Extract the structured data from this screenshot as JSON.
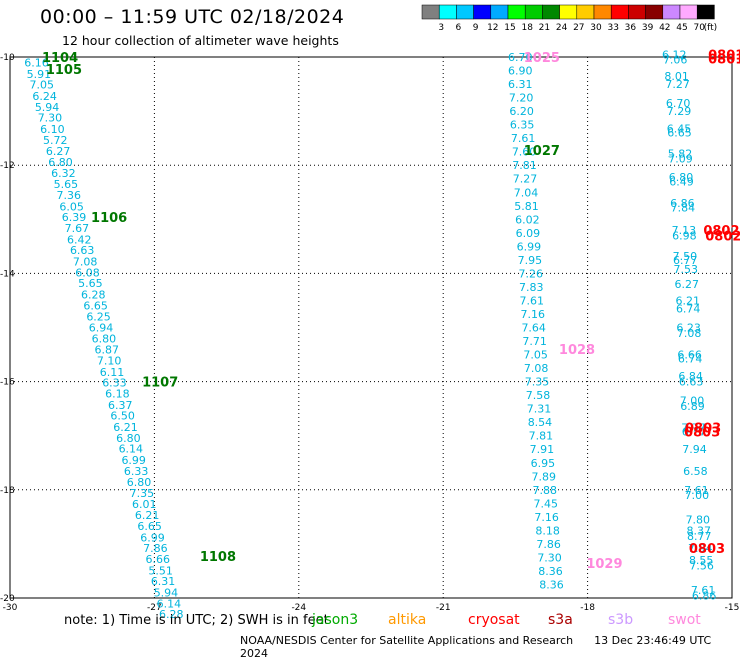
{
  "title": "00:00 – 11:59 UTC 02/18/2024",
  "subtitle": "12 hour collection of altimeter wave heights",
  "note": "note:  1) Time is in UTC; 2) SWH is in feet",
  "credit": "NOAA/NESDIS Center for Satellite Applications and Research",
  "generated": "13 Dec 23:46:49 UTC 2024",
  "missions": [
    {
      "name": "jason3",
      "color": "#00aa00"
    },
    {
      "name": "altika",
      "color": "#ff9900"
    },
    {
      "name": "cryosat",
      "color": "#ff0000"
    },
    {
      "name": "s3a",
      "color": "#aa0000"
    },
    {
      "name": "s3b",
      "color": "#cc99ff"
    },
    {
      "name": "swot",
      "color": "#ff88dd"
    }
  ],
  "colorbar": {
    "unit": "(ft)",
    "bins": [
      {
        "label": "",
        "color": "#808080"
      },
      {
        "label": "3",
        "color": "#00ffff"
      },
      {
        "label": "6",
        "color": "#00c8ff"
      },
      {
        "label": "9",
        "color": "#0000ff"
      },
      {
        "label": "12",
        "color": "#00aaff"
      },
      {
        "label": "15",
        "color": "#00ff00"
      },
      {
        "label": "18",
        "color": "#00cc00"
      },
      {
        "label": "21",
        "color": "#008800"
      },
      {
        "label": "24",
        "color": "#ffff00"
      },
      {
        "label": "27",
        "color": "#ffcc00"
      },
      {
        "label": "30",
        "color": "#ff8800"
      },
      {
        "label": "33",
        "color": "#ff0000"
      },
      {
        "label": "36",
        "color": "#cc0000"
      },
      {
        "label": "39",
        "color": "#880000"
      },
      {
        "label": "42",
        "color": "#cc88ff"
      },
      {
        "label": "45",
        "color": "#ffaaff"
      },
      {
        "label": "70",
        "color": "#000000"
      }
    ]
  },
  "axes": {
    "lon_ticks": [
      -30,
      -27,
      -24,
      -21,
      -18,
      -15
    ],
    "lon_labels": [
      "-30",
      "-27",
      "-24",
      "-21",
      "-18",
      "-15"
    ],
    "lat_ticks": [
      -10,
      -12,
      -14,
      -16,
      -18,
      -20
    ],
    "lat_labels": [
      "-10",
      "-12",
      "-14",
      "-16",
      "-18",
      "-20"
    ],
    "lon_range": [
      -30,
      -15
    ],
    "lat_range": [
      -20,
      -10
    ]
  },
  "style": {
    "value_color": "#00b4dc",
    "time_color": "#007700",
    "s3a_time_color": "#ff0000",
    "swot_time_color": "#ff88dd"
  },
  "tracks": [
    {
      "mission": "jason3",
      "points": [
        [
          -29.45,
          -10.1,
          "6.16"
        ],
        [
          -29.4,
          -10.31,
          "5.91"
        ],
        [
          -29.34,
          -10.51,
          "7.05"
        ],
        [
          -29.28,
          -10.72,
          "6.24"
        ],
        [
          -29.23,
          -10.92,
          "5.94"
        ],
        [
          -29.17,
          -11.12,
          "7.30"
        ],
        [
          -29.12,
          -11.33,
          "6.10"
        ],
        [
          -29.06,
          -11.53,
          "5.72"
        ],
        [
          -29.0,
          -11.74,
          "6.27"
        ],
        [
          -28.95,
          -11.94,
          "6.80"
        ],
        [
          -28.89,
          -12.14,
          "6.32"
        ],
        [
          -28.84,
          -12.35,
          "5.65"
        ],
        [
          -28.78,
          -12.55,
          "7.36"
        ],
        [
          -28.72,
          -12.76,
          "6.05"
        ],
        [
          -28.67,
          -12.96,
          "6.39"
        ],
        [
          -28.61,
          -13.16,
          "7.67"
        ],
        [
          -28.56,
          -13.37,
          "6.42"
        ],
        [
          -28.5,
          -13.57,
          "6.63"
        ],
        [
          -28.44,
          -13.78,
          "7.08"
        ],
        [
          -28.39,
          -13.98,
          "6.08"
        ],
        [
          -28.33,
          -14.18,
          "5.65"
        ],
        [
          -28.27,
          -14.39,
          "6.28"
        ],
        [
          -28.22,
          -14.59,
          "6.65"
        ],
        [
          -28.16,
          -14.8,
          "6.25"
        ],
        [
          -28.11,
          -15.0,
          "6.94"
        ],
        [
          -28.05,
          -15.2,
          "6.80"
        ],
        [
          -27.99,
          -15.41,
          "6.87"
        ],
        [
          -27.94,
          -15.61,
          "7.10"
        ],
        [
          -27.88,
          -15.82,
          "6.11"
        ],
        [
          -27.83,
          -16.02,
          "6.33"
        ],
        [
          -27.77,
          -16.22,
          "6.18"
        ],
        [
          -27.71,
          -16.43,
          "6.37"
        ],
        [
          -27.66,
          -16.63,
          "6.50"
        ],
        [
          -27.6,
          -16.84,
          "6.21"
        ],
        [
          -27.54,
          -17.04,
          "6.80"
        ],
        [
          -27.49,
          -17.24,
          "6.14"
        ],
        [
          -27.43,
          -17.45,
          "6.99"
        ],
        [
          -27.38,
          -17.65,
          "6.33"
        ],
        [
          -27.32,
          -17.86,
          "6.80"
        ],
        [
          -27.26,
          -18.06,
          "7.35"
        ],
        [
          -27.21,
          -18.26,
          "6.01"
        ],
        [
          -27.15,
          -18.47,
          "6.21"
        ],
        [
          -27.1,
          -18.67,
          "6.65"
        ],
        [
          -27.04,
          -18.88,
          "6.99"
        ],
        [
          -26.98,
          -19.08,
          "7.86"
        ],
        [
          -26.93,
          -19.28,
          "6.66"
        ],
        [
          -26.87,
          -19.49,
          "5.51"
        ],
        [
          -26.82,
          -19.69,
          "6.31"
        ],
        [
          -26.76,
          -19.9,
          "5.94"
        ],
        [
          -26.7,
          -20.1,
          "6.14"
        ],
        [
          -26.65,
          -20.3,
          "6.28"
        ]
      ],
      "times": [
        [
          -28.96,
          -10.0,
          "1104"
        ],
        [
          -28.88,
          -10.22,
          "1105"
        ],
        [
          -27.94,
          -12.96,
          "1106"
        ],
        [
          -26.88,
          -16.0,
          "1107"
        ],
        [
          -25.68,
          -19.22,
          "1108"
        ]
      ]
    },
    {
      "mission": "s3a",
      "points": [
        [
          -19.4,
          -10.0,
          "6.70"
        ],
        [
          -19.4,
          -10.25,
          "6.90"
        ],
        [
          -19.4,
          -10.5,
          "6.31"
        ],
        [
          -19.38,
          -10.75,
          "7.20"
        ],
        [
          -19.37,
          -11.0,
          "6.20"
        ],
        [
          -19.36,
          -11.25,
          "6.35"
        ],
        [
          -19.34,
          -11.5,
          "7.61"
        ],
        [
          -19.32,
          -11.75,
          "7.60"
        ],
        [
          -19.31,
          -12.0,
          "7.81"
        ],
        [
          -19.3,
          -12.25,
          "7.27"
        ],
        [
          -19.28,
          -12.5,
          "7.04"
        ],
        [
          -19.27,
          -12.75,
          "5.81"
        ],
        [
          -19.25,
          -13.0,
          "6.02"
        ],
        [
          -19.24,
          -13.25,
          "6.09"
        ],
        [
          -19.22,
          -13.5,
          "6.99"
        ],
        [
          -19.2,
          -13.75,
          "7.95"
        ],
        [
          -19.18,
          -14.0,
          "7.26"
        ],
        [
          -19.17,
          -14.25,
          "7.83"
        ],
        [
          -19.16,
          -14.5,
          "7.61"
        ],
        [
          -19.14,
          -14.75,
          "7.16"
        ],
        [
          -19.12,
          -15.0,
          "7.64"
        ],
        [
          -19.1,
          -15.25,
          "7.71"
        ],
        [
          -19.08,
          -15.5,
          "7.05"
        ],
        [
          -19.07,
          -15.75,
          "7.08"
        ],
        [
          -19.05,
          -16.0,
          "7.35"
        ],
        [
          -19.03,
          -16.25,
          "7.58"
        ],
        [
          -19.01,
          -16.5,
          "7.31"
        ],
        [
          -18.99,
          -16.75,
          "8.54"
        ],
        [
          -18.97,
          -17.0,
          "7.81"
        ],
        [
          -18.95,
          -17.25,
          "7.91"
        ],
        [
          -18.93,
          -17.5,
          "6.95"
        ],
        [
          -18.91,
          -17.75,
          "7.89"
        ],
        [
          -18.89,
          -18.0,
          "7.88"
        ],
        [
          -18.87,
          -18.25,
          "7.45"
        ],
        [
          -18.85,
          -18.5,
          "7.16"
        ],
        [
          -18.83,
          -18.75,
          "8.18"
        ],
        [
          -18.81,
          -19.0,
          "7.86"
        ],
        [
          -18.79,
          -19.25,
          "7.30"
        ],
        [
          -18.77,
          -19.5,
          "8.36"
        ],
        [
          -18.75,
          -19.75,
          "8.36"
        ]
      ],
      "times": [
        [
          -18.95,
          -11.72,
          "1027"
        ]
      ]
    },
    {
      "mission": "swot",
      "points": [],
      "times": [
        [
          -18.95,
          -10.0,
          "1025"
        ],
        [
          -18.22,
          -15.4,
          "1028"
        ],
        [
          -17.65,
          -19.35,
          "1029"
        ]
      ]
    },
    {
      "mission": "cryosat",
      "points": [
        [
          -16.2,
          -9.95,
          "6.12"
        ],
        [
          -16.18,
          -10.05,
          "7.06"
        ],
        [
          -16.15,
          -10.35,
          "8.01"
        ],
        [
          -16.13,
          -10.5,
          "7.27"
        ],
        [
          -16.12,
          -10.85,
          "6.70"
        ],
        [
          -16.1,
          -11.0,
          "7.29"
        ],
        [
          -16.1,
          -11.32,
          "6.45"
        ],
        [
          -16.09,
          -11.4,
          "6.65"
        ],
        [
          -16.08,
          -11.78,
          "5.82"
        ],
        [
          -16.07,
          -11.88,
          "7.09"
        ],
        [
          -16.06,
          -12.22,
          "6.80"
        ],
        [
          -16.05,
          -12.3,
          "6.49"
        ],
        [
          -16.03,
          -12.7,
          "6.86"
        ],
        [
          -16.02,
          -12.78,
          "7.84"
        ],
        [
          -16.0,
          -13.2,
          "7.13"
        ],
        [
          -15.99,
          -13.3,
          "6.98"
        ],
        [
          -15.98,
          -13.68,
          "7.50"
        ],
        [
          -15.97,
          -13.75,
          "6.77"
        ],
        [
          -15.96,
          -13.92,
          "7.53"
        ],
        [
          -15.94,
          -14.2,
          "6.27"
        ],
        [
          -15.92,
          -14.5,
          "6.21"
        ],
        [
          -15.91,
          -14.65,
          "6.74"
        ],
        [
          -15.9,
          -15.0,
          "6.23"
        ],
        [
          -15.89,
          -15.1,
          "7.08"
        ],
        [
          -15.88,
          -15.5,
          "6.66"
        ],
        [
          -15.87,
          -15.57,
          "6.74"
        ],
        [
          -15.86,
          -15.9,
          "6.84"
        ],
        [
          -15.85,
          -16.0,
          "6.63"
        ],
        [
          -15.83,
          -16.35,
          "7.00"
        ],
        [
          -15.82,
          -16.45,
          "6.89"
        ],
        [
          -15.8,
          -16.85,
          "7.77"
        ],
        [
          -15.79,
          -16.92,
          "6.77"
        ],
        [
          -15.78,
          -17.25,
          "7.94"
        ],
        [
          -15.76,
          -17.65,
          "6.58"
        ],
        [
          -15.74,
          -18.0,
          "7.61"
        ],
        [
          -15.73,
          -18.1,
          "7.00"
        ],
        [
          -15.71,
          -18.55,
          "7.80"
        ],
        [
          -15.69,
          -18.75,
          "8.37"
        ],
        [
          -15.68,
          -18.85,
          "8.77"
        ],
        [
          -15.66,
          -19.08,
          "7.94"
        ],
        [
          -15.64,
          -19.3,
          "8.55"
        ],
        [
          -15.63,
          -19.4,
          "7.56"
        ],
        [
          -15.6,
          -19.85,
          "7.61"
        ],
        [
          -15.58,
          -19.95,
          "6.86"
        ]
      ],
      "times": [
        [
          -15.12,
          -9.95,
          "0801"
        ],
        [
          -15.12,
          -10.03,
          "0801"
        ],
        [
          -15.22,
          -13.2,
          "0802"
        ],
        [
          -15.18,
          -13.3,
          "0802"
        ],
        [
          -15.6,
          -16.85,
          "0803"
        ],
        [
          -15.62,
          -16.92,
          "0803"
        ],
        [
          -15.52,
          -19.08,
          "0803"
        ]
      ]
    }
  ]
}
